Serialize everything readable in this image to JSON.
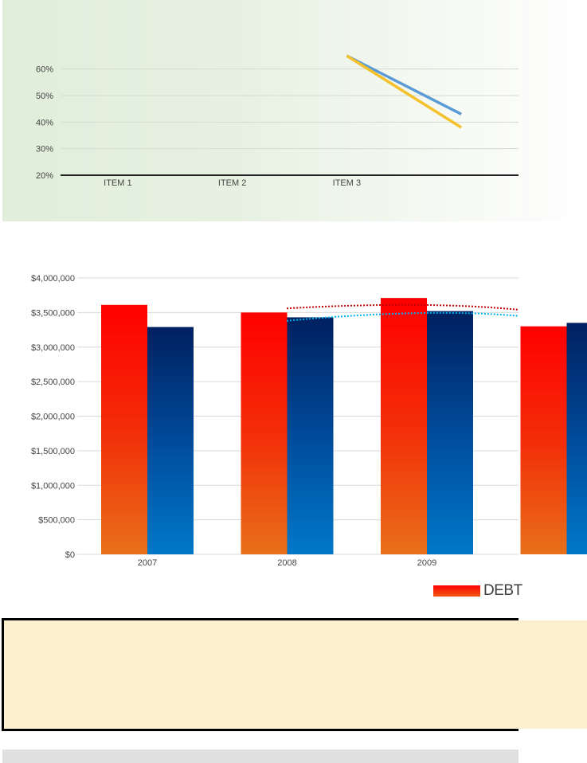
{
  "chart_data": [
    {
      "type": "line",
      "categories": [
        "ITEM 1",
        "ITEM 2",
        "ITEM 3",
        ""
      ],
      "yticks": [
        "20%",
        "30%",
        "40%",
        "50%",
        "60%"
      ],
      "ylim": [
        20,
        65
      ],
      "grid": true,
      "series": [
        {
          "values": [
            null,
            null,
            65,
            43
          ],
          "color": "#5b9bd5"
        },
        {
          "values": [
            null,
            null,
            65,
            38
          ],
          "color": "#f4c02b"
        }
      ]
    },
    {
      "type": "bar",
      "categories": [
        "2007",
        "2008",
        "2009",
        ""
      ],
      "yticks": [
        "$0",
        "$500,000",
        "$1,000,000",
        "$1,500,000",
        "$2,000,000",
        "$2,500,000",
        "$3,000,000",
        "$3,500,000",
        "$4,000,000"
      ],
      "ylim": [
        0,
        4000000
      ],
      "grid": true,
      "series": [
        {
          "name": "DEBT",
          "values": [
            3610000,
            3500000,
            3710000,
            3300000
          ],
          "colors": [
            "#ff0000",
            "#e8701a"
          ]
        },
        {
          "values": [
            3290000,
            3430000,
            3520000,
            3350000
          ],
          "colors": [
            "#002060",
            "#0078c8"
          ]
        }
      ],
      "trendlines": [
        {
          "values": [
            3560000,
            3610000,
            3540000
          ],
          "color": "#c00000"
        },
        {
          "values": [
            3380000,
            3490000,
            3450000
          ],
          "color": "#00b0f0"
        }
      ],
      "legend": {
        "position": "bottom-right",
        "entries": [
          "DEBT"
        ]
      }
    }
  ]
}
